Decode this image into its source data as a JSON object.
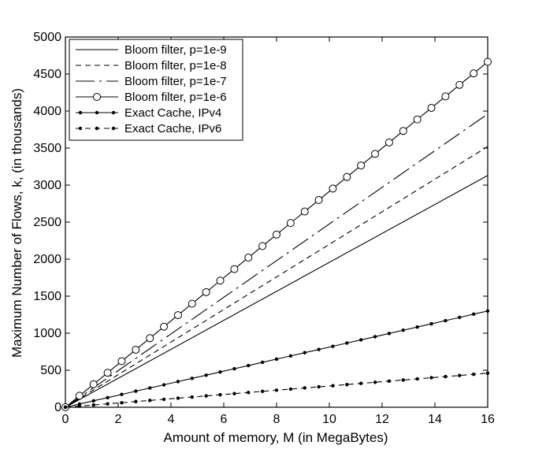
{
  "chart_data": {
    "type": "line",
    "title": "",
    "xlabel": "Amount of memory, M (in MegaBytes)",
    "ylabel": "Maximum Number of Flows, k, (in thousands)",
    "xlim": [
      0,
      16
    ],
    "ylim": [
      0,
      5000
    ],
    "xticks": [
      0,
      2,
      4,
      6,
      8,
      10,
      12,
      14,
      16
    ],
    "yticks": [
      0,
      500,
      1000,
      1500,
      2000,
      2500,
      3000,
      3500,
      4000,
      4500,
      5000
    ],
    "grid": false,
    "legend_position": "top-left",
    "series": [
      {
        "name": "Bloom filter, p=1e-9",
        "style": "solid",
        "marker": "none",
        "x": [
          0,
          16
        ],
        "y": [
          0,
          3130
        ]
      },
      {
        "name": "Bloom filter, p=1e-8",
        "style": "dash",
        "marker": "none",
        "x": [
          0,
          16
        ],
        "y": [
          0,
          3520
        ]
      },
      {
        "name": "Bloom filter, p=1e-7",
        "style": "dashdot",
        "marker": "none",
        "x": [
          0,
          16
        ],
        "y": [
          0,
          3960
        ]
      },
      {
        "name": "Bloom filter, p=1e-6",
        "style": "solid",
        "marker": "circle",
        "x": [
          0,
          0.533,
          1.067,
          1.6,
          2.133,
          2.667,
          3.2,
          3.733,
          4.267,
          4.8,
          5.333,
          5.867,
          6.4,
          6.933,
          7.467,
          8.0,
          8.533,
          9.067,
          9.6,
          10.133,
          10.667,
          11.2,
          11.733,
          12.267,
          12.8,
          13.333,
          13.867,
          14.4,
          14.933,
          15.467,
          16.0
        ],
        "y": [
          0,
          155,
          311,
          466,
          622,
          777,
          933,
          1088,
          1244,
          1399,
          1555,
          1710,
          1866,
          2021,
          2177,
          2332,
          2488,
          2643,
          2799,
          2954,
          3110,
          3265,
          3421,
          3576,
          3732,
          3887,
          4043,
          4198,
          4354,
          4509,
          4665
        ]
      },
      {
        "name": "Exact Cache, IPv4",
        "style": "solid",
        "marker": "dot",
        "x": [
          0,
          0.533,
          1.067,
          1.6,
          2.133,
          2.667,
          3.2,
          3.733,
          4.267,
          4.8,
          5.333,
          5.867,
          6.4,
          6.933,
          7.467,
          8.0,
          8.533,
          9.067,
          9.6,
          10.133,
          10.667,
          11.2,
          11.733,
          12.267,
          12.8,
          13.333,
          13.867,
          14.4,
          14.933,
          15.467,
          16.0
        ],
        "y": [
          0,
          43,
          87,
          130,
          173,
          217,
          260,
          303,
          347,
          390,
          433,
          477,
          520,
          563,
          607,
          650,
          693,
          737,
          780,
          823,
          867,
          910,
          953,
          997,
          1040,
          1083,
          1127,
          1170,
          1213,
          1257,
          1300
        ]
      },
      {
        "name": "Exact Cache, IPv6",
        "style": "dash",
        "marker": "dot",
        "x": [
          0,
          0.533,
          1.067,
          1.6,
          2.133,
          2.667,
          3.2,
          3.733,
          4.267,
          4.8,
          5.333,
          5.867,
          6.4,
          6.933,
          7.467,
          8.0,
          8.533,
          9.067,
          9.6,
          10.133,
          10.667,
          11.2,
          11.733,
          12.267,
          12.8,
          13.333,
          13.867,
          14.4,
          14.933,
          15.467,
          16.0
        ],
        "y": [
          0,
          15,
          31,
          46,
          61,
          77,
          92,
          107,
          123,
          138,
          153,
          169,
          184,
          199,
          215,
          230,
          245,
          261,
          276,
          291,
          307,
          322,
          337,
          353,
          368,
          383,
          399,
          414,
          429,
          445,
          460
        ]
      }
    ]
  }
}
